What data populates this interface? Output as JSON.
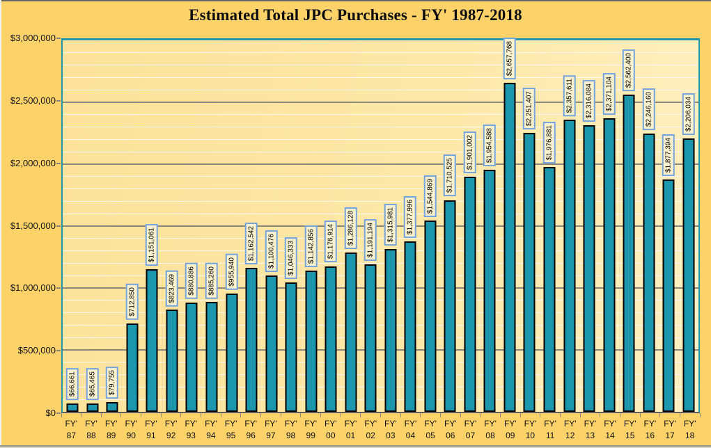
{
  "title": "Estimated Total JPC Purchases - FY' 1987-2018",
  "chart_data": {
    "type": "bar",
    "title": "Estimated Total JPC Purchases - FY' 1987-2018",
    "xlabel": "",
    "ylabel": "",
    "ylim": [
      0,
      3000000
    ],
    "y_major_step": 500000,
    "y_minor_step": 100000,
    "grid": "major-and-minor",
    "legend_position": "none",
    "x_prefix": "FY'",
    "categories": [
      "87",
      "88",
      "89",
      "90",
      "91",
      "92",
      "93",
      "94",
      "95",
      "96",
      "97",
      "98",
      "99",
      "00",
      "01",
      "02",
      "03",
      "04",
      "05",
      "06",
      "07",
      "08",
      "09",
      "10",
      "11",
      "12",
      "13",
      "14",
      "15",
      "16",
      "17",
      "18"
    ],
    "values": [
      66661,
      65465,
      79755,
      712850,
      1151061,
      823469,
      880886,
      885260,
      955940,
      1162542,
      1100476,
      1046333,
      1142856,
      1176914,
      1286128,
      1191194,
      1315981,
      1377996,
      1544869,
      1710525,
      1901002,
      1954588,
      2657768,
      2251407,
      1976881,
      2357611,
      2316084,
      2371104,
      2562400,
      2246160,
      1877394,
      2206034
    ],
    "value_labels": [
      "$66,661",
      "$65,465",
      "$79,755",
      "$712,850",
      "$1,151,061",
      "$823,469",
      "$880,886",
      "$885,260",
      "$955,940",
      "$1,162,542",
      "$1,100,476",
      "$1,046,333",
      "$1,142,856",
      "$1,176,914",
      "$1,286,128",
      "$1,191,194",
      "$1,315,981",
      "$1,377,996",
      "$1,544,869",
      "$1,710,525",
      "$1,901,002",
      "$1,954,588",
      "$2,657,768",
      "$2,251,407",
      "$1,976,881",
      "$2,357,611",
      "$2,316,084",
      "$2,371,104",
      "$2,562,400",
      "$2,246,160",
      "$1,877,394",
      "$2,206,034"
    ],
    "y_tick_labels": [
      "$3,000,000",
      "$2,500,000",
      "$2,000,000",
      "$1,500,000",
      "$1,000,000",
      "$500,000",
      "$0"
    ],
    "colors": {
      "background": "#FCD269",
      "plot_fill": "#FDE8A8",
      "plot_border": "#2095AC",
      "bar_fill": "#1C96AC",
      "bar_border": "#000000",
      "label_box_fill": "#FCF3CE",
      "label_box_border": "#74A3DC",
      "major_grid": "#8A867A",
      "minor_grid": "#FFF6EE",
      "axis_line": "#5F5F5F"
    }
  }
}
